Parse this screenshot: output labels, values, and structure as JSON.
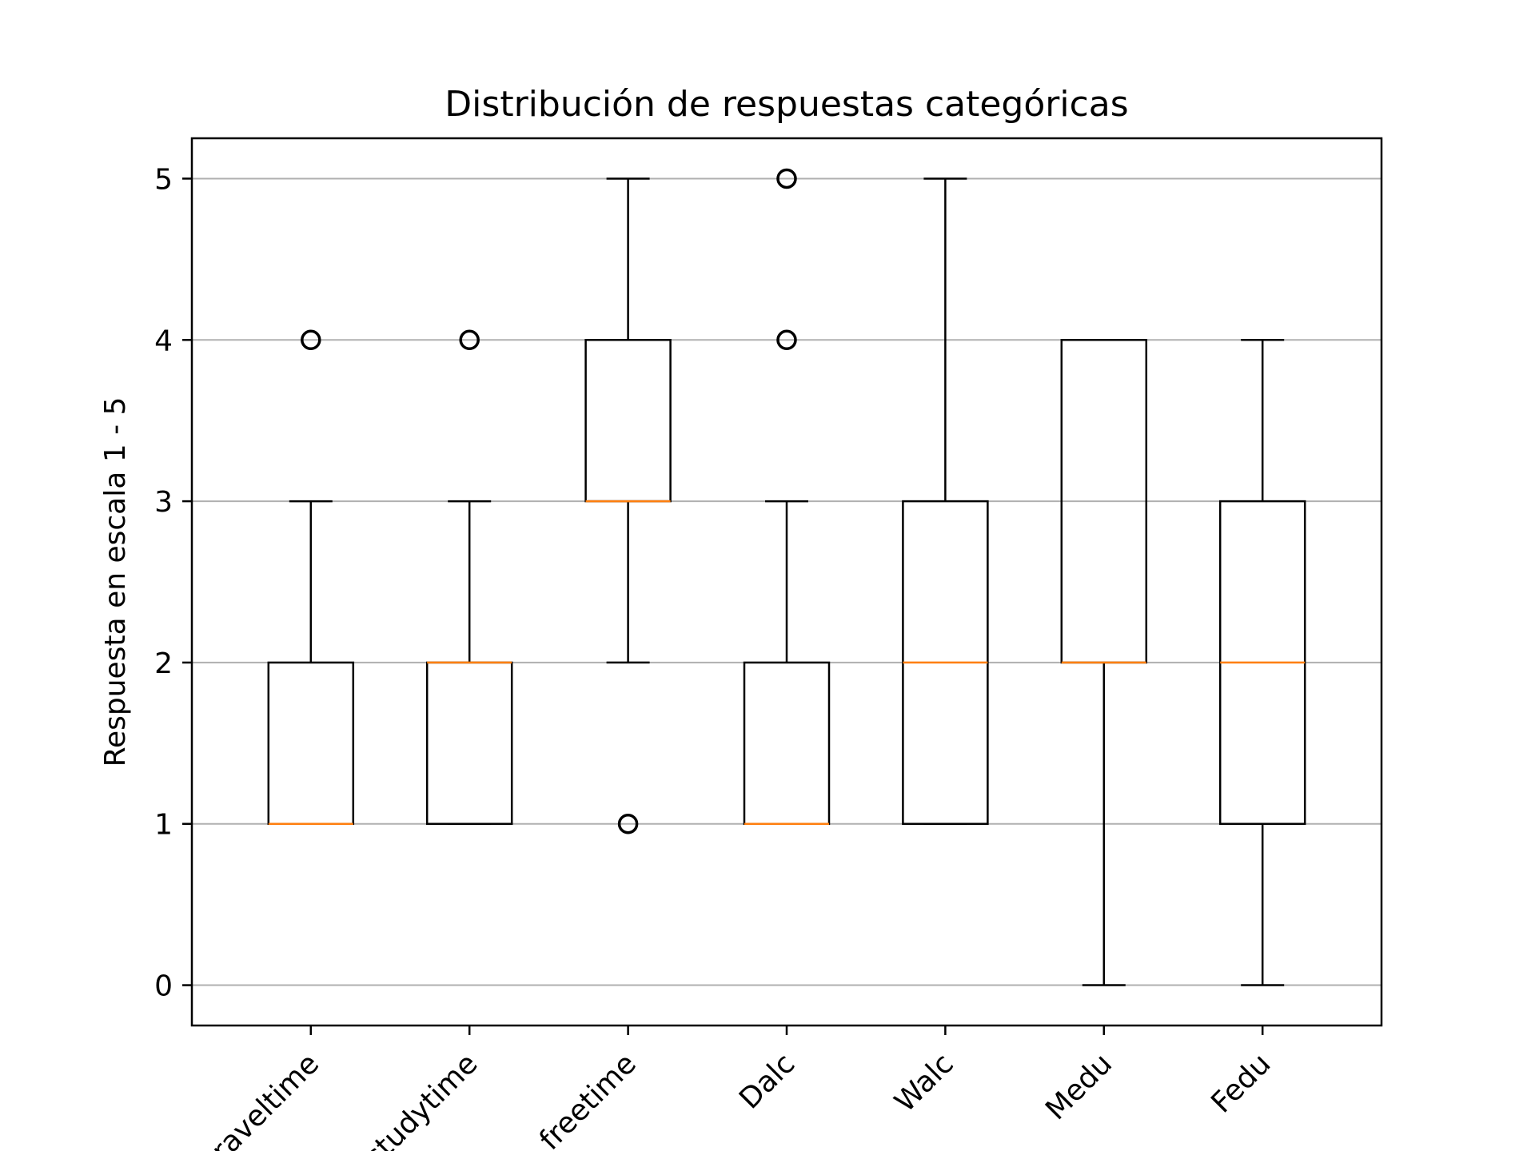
{
  "chart_data": {
    "type": "box",
    "title": "Distribución de respuestas categóricas",
    "xlabel": "",
    "ylabel": "Respuesta en escala 1 - 5",
    "ylim": [
      -0.25,
      5.25
    ],
    "yticks": [
      "0",
      "1",
      "2",
      "3",
      "4",
      "5"
    ],
    "ytick_values": [
      0,
      1,
      2,
      3,
      4,
      5
    ],
    "grid": "horizontal",
    "box_color": "#000000",
    "median_color": "#ff7f0e",
    "categories": [
      "traveltime",
      "studytime",
      "freetime",
      "Dalc",
      "Walc",
      "Medu",
      "Fedu"
    ],
    "boxes": [
      {
        "whisker_low": 1,
        "q1": 1,
        "median": 1,
        "q3": 2,
        "whisker_high": 3,
        "outliers": [
          4
        ]
      },
      {
        "whisker_low": 1,
        "q1": 1,
        "median": 2,
        "q3": 2,
        "whisker_high": 3,
        "outliers": [
          4
        ]
      },
      {
        "whisker_low": 2,
        "q1": 3,
        "median": 3,
        "q3": 4,
        "whisker_high": 5,
        "outliers": [
          1
        ]
      },
      {
        "whisker_low": 1,
        "q1": 1,
        "median": 1,
        "q3": 2,
        "whisker_high": 3,
        "outliers": [
          4,
          5
        ]
      },
      {
        "whisker_low": 1,
        "q1": 1,
        "median": 2,
        "q3": 3,
        "whisker_high": 5,
        "outliers": []
      },
      {
        "whisker_low": 0,
        "q1": 2,
        "median": 2,
        "q3": 4,
        "whisker_high": 4,
        "outliers": []
      },
      {
        "whisker_low": 0,
        "q1": 1,
        "median": 2,
        "q3": 3,
        "whisker_high": 4,
        "outliers": []
      }
    ]
  }
}
